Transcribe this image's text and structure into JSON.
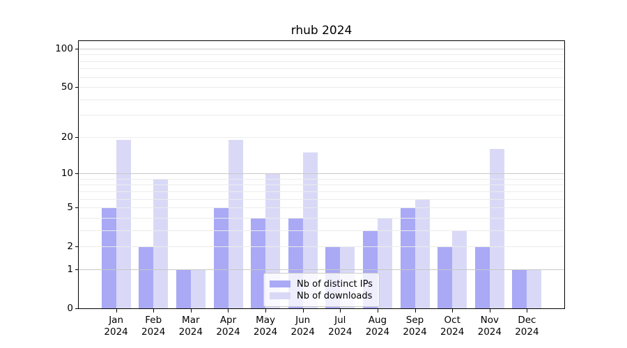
{
  "title": "rhub 2024",
  "legend": {
    "items": [
      {
        "label": "Nb of distinct IPs",
        "color": "#a9a9f5"
      },
      {
        "label": "Nb of downloads",
        "color": "#d9d9f7"
      }
    ]
  },
  "chart_data": {
    "type": "bar",
    "title": "rhub 2024",
    "categories": [
      "Jan",
      "Feb",
      "Mar",
      "Apr",
      "May",
      "Jun",
      "Jul",
      "Aug",
      "Sep",
      "Oct",
      "Nov",
      "Dec"
    ],
    "year_label": "2024",
    "series": [
      {
        "name": "Nb of distinct IPs",
        "color": "#a9a9f5",
        "values": [
          5,
          2,
          1,
          5,
          4,
          4,
          2,
          3,
          5,
          2,
          2,
          1
        ]
      },
      {
        "name": "Nb of downloads",
        "color": "#d9d9f7",
        "values": [
          19,
          9,
          1,
          19,
          10,
          15,
          2,
          4,
          6,
          3,
          16,
          1
        ]
      }
    ],
    "xlabel": "",
    "ylabel": "",
    "yscale": "log10(value+1)",
    "ylim": [
      0,
      115
    ],
    "yticks": [
      0,
      1,
      2,
      5,
      10,
      20,
      50,
      100
    ],
    "major_gridlines": [
      1,
      10,
      100
    ],
    "minor_gridlines": [
      2,
      3,
      4,
      5,
      6,
      7,
      8,
      9,
      20,
      30,
      40,
      50,
      60,
      70,
      80,
      90
    ],
    "grid": true,
    "grid_above_bars": true,
    "legend_position": "lower center",
    "colors": {
      "major_grid": "#c8c8c8",
      "minor_grid": "#ececec",
      "axis": "#000000",
      "background": "#ffffff"
    }
  }
}
